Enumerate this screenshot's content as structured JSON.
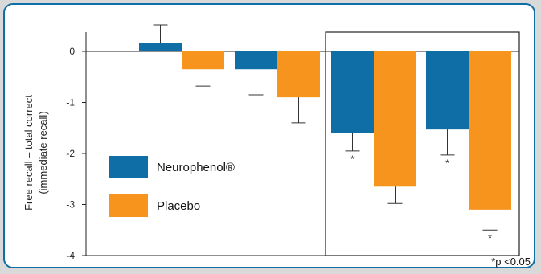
{
  "chart_data": {
    "type": "bar",
    "ylabel_lines": [
      "Free recall – total correct",
      "(immediate recall)"
    ],
    "ylim": [
      -4,
      0
    ],
    "yticks": [
      0,
      -1,
      -2,
      -3,
      -4
    ],
    "grid": false,
    "legend_position": "bottom-left",
    "series": [
      {
        "name": "Neurophenol®",
        "color": "#0f6ea6",
        "values": [
          0.17,
          -0.35,
          -1.6,
          -1.53
        ]
      },
      {
        "name": "Placebo",
        "color": "#f7941d",
        "values": [
          -0.35,
          -0.9,
          -2.65,
          -3.1
        ]
      }
    ],
    "errors": [
      [
        0.35,
        0.5,
        0.35,
        0.5
      ],
      [
        0.33,
        0.5,
        0.33,
        0.4
      ]
    ],
    "significance": [
      [
        false,
        false,
        true,
        true
      ],
      [
        false,
        false,
        false,
        true
      ]
    ],
    "significance_marker": "*",
    "footnote": "*p <0.05"
  }
}
